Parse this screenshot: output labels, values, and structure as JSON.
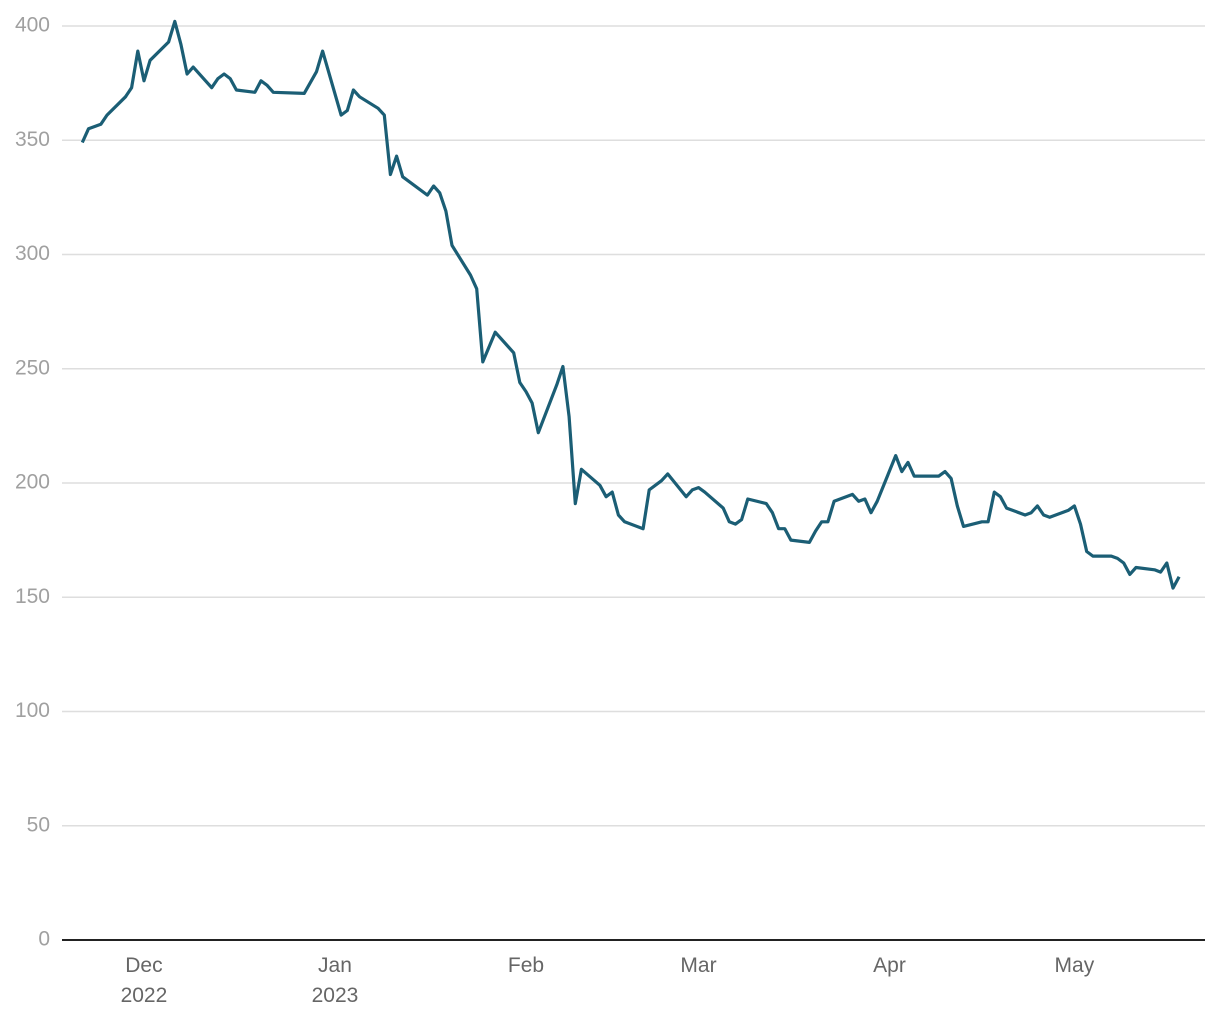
{
  "chart_data": {
    "type": "line",
    "x": [
      -10,
      -9,
      -8,
      -7,
      -6,
      -3,
      -2,
      -1,
      0,
      1,
      4,
      5,
      6,
      7,
      8,
      11,
      12,
      13,
      14,
      15,
      18,
      19,
      20,
      21,
      26,
      28,
      29,
      32,
      33,
      34,
      35,
      38,
      39,
      40,
      41,
      42,
      46,
      47,
      48,
      49,
      50,
      53,
      54,
      55,
      57,
      60,
      61,
      62,
      63,
      64,
      67,
      68,
      69,
      70,
      71,
      74,
      75,
      76,
      77,
      78,
      81,
      82,
      84,
      85,
      88,
      89,
      90,
      91,
      94,
      95,
      96,
      97,
      98,
      101,
      102,
      103,
      104,
      105,
      108,
      109,
      110,
      111,
      112,
      115,
      116,
      117,
      118,
      119,
      122,
      123,
      124,
      125,
      129,
      130,
      131,
      132,
      133,
      136,
      137,
      138,
      139,
      140,
      143,
      144,
      145,
      146,
      147,
      150,
      151,
      152,
      153,
      154,
      157,
      158,
      159,
      160,
      161,
      164,
      165,
      166,
      167,
      168
    ],
    "values": [
      349,
      355,
      356,
      357,
      361,
      369,
      373,
      389,
      376,
      385,
      393,
      402,
      392,
      379,
      382,
      373,
      377,
      379,
      377,
      372,
      371,
      376,
      374,
      371,
      370.5,
      380,
      389,
      361,
      363,
      372,
      369,
      364,
      361,
      335,
      343,
      334,
      326,
      330,
      327,
      319,
      304,
      291,
      285,
      253,
      266,
      257,
      244,
      240,
      235,
      222,
      243,
      251,
      229,
      191,
      206,
      199,
      194,
      196,
      186,
      183,
      180,
      197,
      201,
      204,
      194,
      197,
      198,
      196,
      189,
      183,
      182,
      184,
      193,
      191,
      187,
      180,
      180,
      175,
      174,
      179,
      183,
      183,
      192,
      195,
      192,
      193,
      187,
      192,
      212,
      205,
      209,
      203,
      203,
      205,
      202,
      190,
      181,
      183,
      183,
      196,
      194,
      189,
      186,
      187,
      190,
      186,
      185,
      188,
      190,
      182,
      170,
      168,
      168,
      167,
      165,
      160,
      163,
      162,
      161,
      165,
      154,
      159
    ],
    "color": "#1b5e75",
    "xlim": [
      -13.3,
      172.2
    ],
    "xticks": [
      {
        "value": 0,
        "label": "Dec\n2022"
      },
      {
        "value": 31,
        "label": "Jan\n2023"
      },
      {
        "value": 62,
        "label": "Feb"
      },
      {
        "value": 90,
        "label": "Mar"
      },
      {
        "value": 121,
        "label": "Apr"
      },
      {
        "value": 151,
        "label": "May"
      }
    ],
    "ylim": [
      0,
      400
    ],
    "yticks": [
      0,
      50,
      100,
      150,
      200,
      250,
      300,
      350,
      400
    ],
    "grid": true
  }
}
